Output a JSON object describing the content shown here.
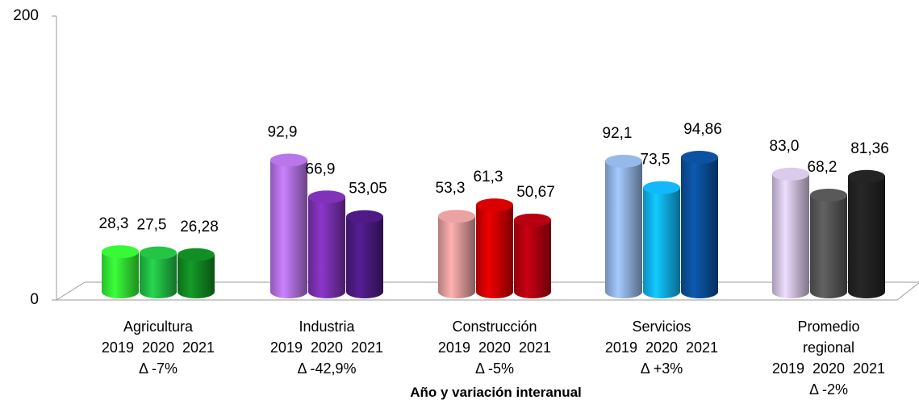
{
  "chart_data": {
    "type": "bar",
    "x_label": "Año y variación interanual",
    "categories": [
      "Agricultura",
      "Industria",
      "Construcción",
      "Servicios",
      "Promedio regional"
    ],
    "deltas": [
      "Δ -7%",
      "Δ -42,9%",
      "Δ -5%",
      "Δ +3%",
      "Δ -2%"
    ],
    "series": [
      {
        "name": "2019",
        "values": [
          28.3,
          92.9,
          53.3,
          92.1,
          83.0
        ],
        "value_labels": [
          "28,3",
          "92,9",
          "53,3",
          "92,1",
          "83,0"
        ],
        "colors": [
          "#33ee33",
          "#b070e0",
          "#e09a9a",
          "#8fb0e0",
          "#d0c0e0"
        ]
      },
      {
        "name": "2020",
        "values": [
          27.5,
          66.9,
          61.3,
          73.5,
          68.2
        ],
        "value_labels": [
          "27,5",
          "66,9",
          "61,3",
          "73,5",
          "68,2"
        ],
        "colors": [
          "#22bb44",
          "#7a30b0",
          "#d00000",
          "#10b0f0",
          "#555555"
        ]
      },
      {
        "name": "2021",
        "values": [
          26.28,
          53.05,
          50.67,
          94.86,
          81.36
        ],
        "value_labels": [
          "26,28",
          "53,05",
          "50,67",
          "94,86",
          "81,36"
        ],
        "colors": [
          "#118822",
          "#4a1a80",
          "#b00010",
          "#0a4f9a",
          "#222222"
        ]
      }
    ],
    "ylim": [
      0,
      200
    ],
    "yticks": [
      0,
      200
    ]
  }
}
